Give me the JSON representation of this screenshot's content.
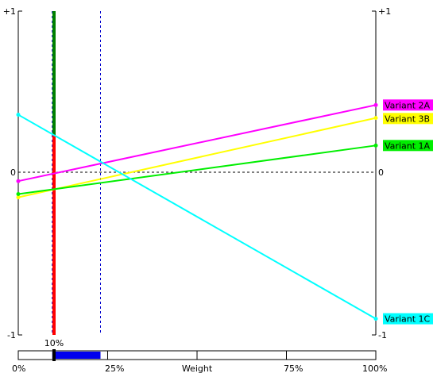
{
  "chart_data": {
    "type": "line",
    "title": "",
    "xlabel": "Weight",
    "x_range": [
      0,
      100
    ],
    "x_ticks": [
      "0%",
      "25%",
      "Weight",
      "75%",
      "100%"
    ],
    "y_range": [
      -1,
      1
    ],
    "y_ticks_left": [
      "+1",
      "0",
      "-1"
    ],
    "y_ticks_right": [
      "+1",
      "0",
      "-1"
    ],
    "current_weight": 10,
    "current_weight_label": "10%",
    "weight_interval": [
      9.5,
      23
    ],
    "series": [
      {
        "name": "Variant 2A",
        "color": "#ff00ff",
        "x": [
          0,
          100
        ],
        "y": [
          -0.05,
          0.42
        ]
      },
      {
        "name": "Variant 3B",
        "color": "#ffff00",
        "x": [
          0,
          100
        ],
        "y": [
          -0.15,
          0.34
        ]
      },
      {
        "name": "Variant 1A",
        "color": "#00ee00",
        "x": [
          0,
          100
        ],
        "y": [
          -0.13,
          0.17
        ]
      },
      {
        "name": "Variant 1C",
        "color": "#00ffff",
        "x": [
          0,
          100
        ],
        "y": [
          0.36,
          -0.9
        ]
      }
    ]
  }
}
